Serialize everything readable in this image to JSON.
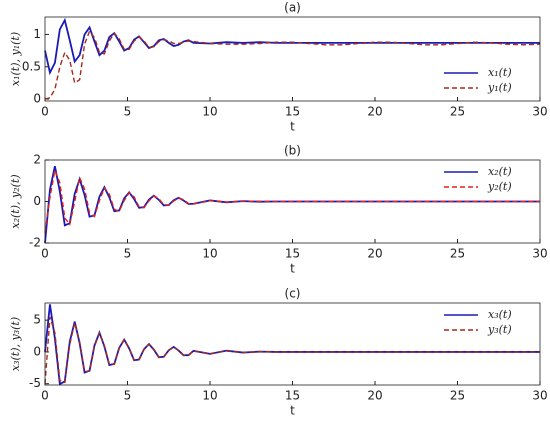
{
  "chart_data": [
    {
      "type": "line",
      "title": "(a)",
      "xlabel": "t",
      "ylabel": "x₁(t), y₁(t)",
      "x": [
        0,
        0.3,
        0.6,
        0.9,
        1.2,
        1.5,
        1.8,
        2.1,
        2.4,
        2.7,
        3,
        3.3,
        3.6,
        3.9,
        4.2,
        4.5,
        4.8,
        5.1,
        5.4,
        5.7,
        6,
        6.3,
        6.6,
        6.9,
        7.2,
        7.5,
        7.8,
        8.1,
        8.4,
        8.7,
        9,
        10,
        11,
        12,
        13,
        14,
        15,
        16,
        17,
        18,
        19,
        20,
        21,
        22,
        23,
        24,
        25,
        26,
        27,
        28,
        29,
        30
      ],
      "series": [
        {
          "name": "x₁(t)",
          "color": "#1a1ab8",
          "linestyle": "solid",
          "values": [
            0.75,
            0.41,
            0.56,
            1.08,
            1.22,
            0.91,
            0.58,
            0.68,
            1.0,
            1.11,
            0.89,
            0.68,
            0.75,
            0.96,
            1.02,
            0.89,
            0.75,
            0.79,
            0.92,
            0.97,
            0.88,
            0.79,
            0.82,
            0.91,
            0.93,
            0.87,
            0.82,
            0.84,
            0.89,
            0.91,
            0.87,
            0.86,
            0.88,
            0.87,
            0.88,
            0.87,
            0.87,
            0.87,
            0.87,
            0.87,
            0.87,
            0.87,
            0.87,
            0.87,
            0.87,
            0.87,
            0.87,
            0.87,
            0.87,
            0.87,
            0.87,
            0.87
          ]
        },
        {
          "name": "y₁(t)",
          "color": "#a52a1a",
          "linestyle": "dashed",
          "values": [
            0,
            0.02,
            0.15,
            0.5,
            0.72,
            0.6,
            0.25,
            0.3,
            0.85,
            1.05,
            0.95,
            0.72,
            0.7,
            0.9,
            1.02,
            0.93,
            0.77,
            0.77,
            0.9,
            0.96,
            0.9,
            0.8,
            0.81,
            0.89,
            0.92,
            0.9,
            0.86,
            0.86,
            0.88,
            0.9,
            0.89,
            0.86,
            0.85,
            0.85,
            0.86,
            0.88,
            0.88,
            0.86,
            0.84,
            0.84,
            0.86,
            0.88,
            0.88,
            0.86,
            0.84,
            0.84,
            0.86,
            0.88,
            0.87,
            0.85,
            0.84,
            0.85
          ]
        }
      ],
      "xlim": [
        0,
        30
      ],
      "ylim": [
        -0.03,
        1.27
      ],
      "xticks": [
        0,
        5,
        10,
        15,
        20,
        25,
        30
      ],
      "yticks": [
        0,
        0.5,
        1
      ],
      "legend": "lower right"
    },
    {
      "type": "line",
      "title": "(b)",
      "xlabel": "t",
      "ylabel": "x₂(t), y₂(t)",
      "x": [
        0,
        0.3,
        0.6,
        0.9,
        1.2,
        1.5,
        1.8,
        2.1,
        2.4,
        2.7,
        3,
        3.3,
        3.6,
        3.9,
        4.2,
        4.5,
        4.8,
        5.1,
        5.4,
        5.7,
        6,
        6.3,
        6.6,
        6.9,
        7.2,
        7.5,
        7.8,
        8.1,
        8.4,
        8.7,
        9,
        10,
        11,
        12,
        13,
        14,
        15,
        16,
        17,
        18,
        19,
        20,
        21,
        22,
        23,
        24,
        25,
        26,
        27,
        28,
        29,
        30
      ],
      "series": [
        {
          "name": "x₂(t)",
          "color": "#1a1ab8",
          "linestyle": "solid",
          "values": [
            -2,
            0.57,
            1.7,
            0.48,
            -1.15,
            -1.05,
            0.37,
            1.08,
            0.31,
            -0.73,
            -0.67,
            0.23,
            0.69,
            0.2,
            -0.47,
            -0.43,
            0.15,
            0.44,
            0.12,
            -0.3,
            -0.27,
            0.09,
            0.28,
            0.08,
            -0.19,
            -0.17,
            0.06,
            0.18,
            0.05,
            -0.12,
            -0.11,
            0.05,
            -0.04,
            0.02,
            -0.01,
            0,
            0,
            0,
            0,
            0,
            0,
            0,
            0,
            0,
            0,
            0,
            0,
            0,
            0,
            0,
            0,
            0
          ]
        },
        {
          "name": "y₂(t)",
          "color": "#e0201a",
          "linestyle": "dashed",
          "values": [
            -1.5,
            0.2,
            1.5,
            0.9,
            -0.8,
            -1.1,
            0,
            1.15,
            0.6,
            -0.55,
            -0.72,
            0.05,
            0.66,
            0.35,
            -0.38,
            -0.47,
            0.05,
            0.42,
            0.22,
            -0.25,
            -0.3,
            0.03,
            0.27,
            0.14,
            -0.16,
            -0.18,
            0.02,
            0.17,
            0.09,
            -0.1,
            -0.12,
            0.04,
            -0.03,
            0.02,
            0.01,
            0,
            0,
            0,
            0,
            0,
            0,
            0,
            0,
            0,
            0,
            0,
            0,
            0,
            0,
            0,
            0,
            0
          ]
        }
      ],
      "xlim": [
        0,
        30
      ],
      "ylim": [
        -2,
        2
      ],
      "xticks": [
        0,
        5,
        10,
        15,
        20,
        25,
        30
      ],
      "yticks": [
        -2,
        0,
        2
      ],
      "legend": "upper right"
    },
    {
      "type": "line",
      "title": "(c)",
      "xlabel": "t",
      "ylabel": "x₃(t), y₃(t)",
      "x": [
        0,
        0.3,
        0.6,
        0.9,
        1.2,
        1.5,
        1.8,
        2.1,
        2.4,
        2.7,
        3,
        3.3,
        3.6,
        3.9,
        4.2,
        4.5,
        4.8,
        5.1,
        5.4,
        5.7,
        6,
        6.3,
        6.6,
        6.9,
        7.2,
        7.5,
        7.8,
        8.1,
        8.4,
        8.7,
        9,
        10,
        11,
        12,
        13,
        14,
        15,
        16,
        17,
        18,
        19,
        20,
        21,
        22,
        23,
        24,
        25,
        26,
        27,
        28,
        29,
        30
      ],
      "series": [
        {
          "name": "x₃(t)",
          "color": "#1a1ab8",
          "linestyle": "solid",
          "values": [
            0,
            7.49,
            2.12,
            -5.06,
            -4.63,
            1.62,
            4.78,
            1.35,
            -3.23,
            -2.95,
            1.03,
            3.05,
            0.86,
            -2.06,
            -1.88,
            0.66,
            1.94,
            0.55,
            -1.31,
            -1.2,
            0.42,
            1.24,
            0.35,
            -0.84,
            -0.76,
            0.27,
            0.79,
            0.22,
            -0.53,
            -0.49,
            0.17,
            -0.3,
            0.2,
            -0.1,
            0.05,
            0,
            0,
            0,
            0,
            0,
            0,
            0,
            0,
            0,
            0,
            0,
            0,
            0,
            0,
            0,
            0,
            0
          ]
        },
        {
          "name": "y₃(t)",
          "color": "#a52a1a",
          "linestyle": "dashed",
          "values": [
            -5,
            5.5,
            3,
            -4.5,
            -4.8,
            1.2,
            4.6,
            1.6,
            -3.1,
            -3,
            0.9,
            3,
            1,
            -2,
            -1.95,
            0.6,
            1.9,
            0.6,
            -1.28,
            -1.23,
            0.4,
            1.22,
            0.38,
            -0.82,
            -0.78,
            0.25,
            0.78,
            0.24,
            -0.52,
            -0.5,
            0.15,
            -0.28,
            0.18,
            -0.1,
            0.05,
            0,
            0,
            0,
            0,
            0,
            0,
            0,
            0,
            0,
            0,
            0,
            0,
            0,
            0,
            0,
            0,
            0
          ]
        }
      ],
      "xlim": [
        0,
        30
      ],
      "ylim": [
        -5.2,
        7.7
      ],
      "xticks": [
        0,
        5,
        10,
        15,
        20,
        25,
        30
      ],
      "yticks": [
        -5,
        0,
        5
      ],
      "legend": "upper right"
    }
  ]
}
